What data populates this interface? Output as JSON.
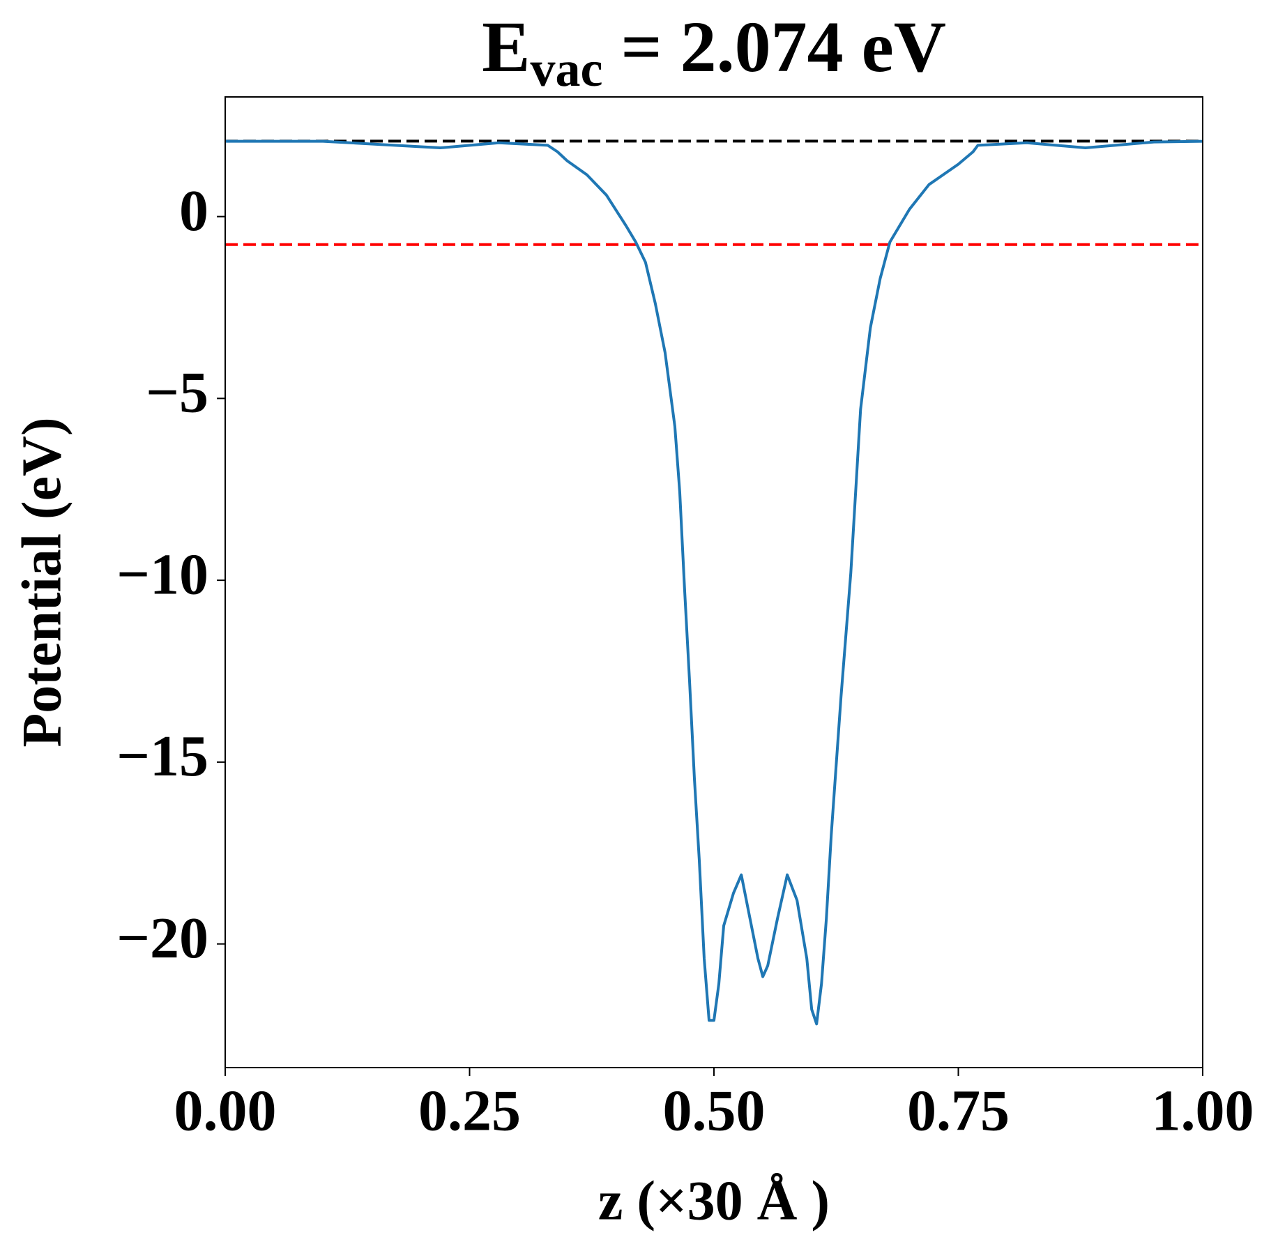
{
  "chart_data": {
    "type": "line",
    "title": [
      "E",
      "vac",
      " = 2.074 eV"
    ],
    "xlabel": "z (×30 Å )",
    "ylabel": "Potential (eV)",
    "xlim": [
      0,
      1
    ],
    "ylim": [
      -23.4,
      3.29
    ],
    "xticks": [
      {
        "value": 0,
        "label": "0.00"
      },
      {
        "value": 0.25,
        "label": "0.25"
      },
      {
        "value": 0.5,
        "label": "0.50"
      },
      {
        "value": 0.75,
        "label": "0.75"
      },
      {
        "value": 1,
        "label": "1.00"
      }
    ],
    "yticks": [
      {
        "value": -20,
        "label": "−20"
      },
      {
        "value": -15,
        "label": "−15"
      },
      {
        "value": -10,
        "label": "−10"
      },
      {
        "value": -5,
        "label": "−5"
      },
      0
    ],
    "hlines": [
      {
        "value": 2.074,
        "color": "#000000"
      },
      {
        "value": -0.77,
        "color": "#ff0000"
      }
    ],
    "x": [
      0,
      0.1,
      0.22,
      0.28,
      0.33,
      0.34,
      0.35,
      0.37,
      0.39,
      0.41,
      0.42,
      0.43,
      0.44,
      0.45,
      0.46,
      0.465,
      0.47,
      0.475,
      0.48,
      0.485,
      0.49,
      0.495,
      0.5,
      0.505,
      0.51,
      0.52,
      0.528,
      0.535,
      0.545,
      0.55,
      0.555,
      0.565,
      0.575,
      0.585,
      0.595,
      0.6,
      0.605,
      0.61,
      0.615,
      0.62,
      0.63,
      0.64,
      0.65,
      0.66,
      0.67,
      0.68,
      0.7,
      0.72,
      0.75,
      0.765,
      0.77,
      0.82,
      0.88,
      0.95,
      1
    ],
    "series": [
      {
        "color": "#1f77b4",
        "values": [
          2.07,
          2.07,
          1.89,
          2.03,
          1.96,
          1.78,
          1.53,
          1.15,
          0.59,
          -0.25,
          -0.7,
          -1.26,
          -2.39,
          -3.74,
          -5.77,
          -7.57,
          -10.27,
          -12.75,
          -15.45,
          -17.7,
          -20.4,
          -22.1,
          -22.1,
          -21.1,
          -19.5,
          -18.6,
          -18.1,
          -19.05,
          -20.4,
          -20.9,
          -20.6,
          -19.3,
          -18.1,
          -18.8,
          -20.4,
          -21.8,
          -22.2,
          -21.1,
          -19.3,
          -17.0,
          -13.2,
          -9.8,
          -5.3,
          -3.06,
          -1.71,
          -0.7,
          0.2,
          0.88,
          1.44,
          1.78,
          1.96,
          2.03,
          1.89,
          2.05,
          2.07
        ]
      }
    ]
  }
}
